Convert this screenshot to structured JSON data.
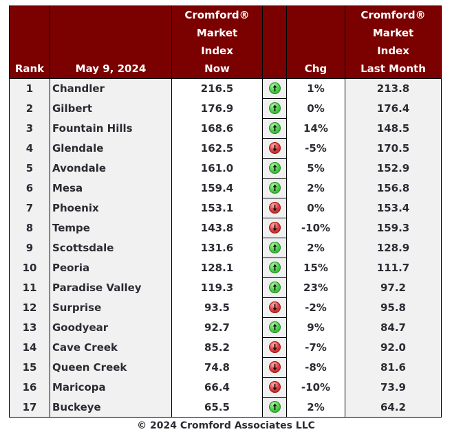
{
  "header": {
    "rank_label": "Rank",
    "date_label": "May 9, 2024",
    "now_label": [
      "Cromford®",
      "Market",
      "Index",
      "Now"
    ],
    "icon_label": "",
    "chg_label": "Chg",
    "last_label": [
      "Cromford®",
      "Market",
      "Index",
      "Last Month"
    ]
  },
  "colors": {
    "header_bg": "#7b0000",
    "header_text": "#ffffff",
    "up_icon": "#3cc63c",
    "down_icon": "#d83030",
    "shaded_cell": "#f1f1f1"
  },
  "rows": [
    {
      "rank": "1",
      "city": "Chandler",
      "now": "216.5",
      "direction": "up-arrow-icon",
      "chg": "1%",
      "last": "213.8"
    },
    {
      "rank": "2",
      "city": "Gilbert",
      "now": "176.9",
      "direction": "up-arrow-icon",
      "chg": "0%",
      "last": "176.4"
    },
    {
      "rank": "3",
      "city": "Fountain Hills",
      "now": "168.6",
      "direction": "up-arrow-icon",
      "chg": "14%",
      "last": "148.5"
    },
    {
      "rank": "4",
      "city": "Glendale",
      "now": "162.5",
      "direction": "down-arrow-icon",
      "chg": "-5%",
      "last": "170.5"
    },
    {
      "rank": "5",
      "city": "Avondale",
      "now": "161.0",
      "direction": "up-arrow-icon",
      "chg": "5%",
      "last": "152.9"
    },
    {
      "rank": "6",
      "city": "Mesa",
      "now": "159.4",
      "direction": "up-arrow-icon",
      "chg": "2%",
      "last": "156.8"
    },
    {
      "rank": "7",
      "city": "Phoenix",
      "now": "153.1",
      "direction": "down-arrow-icon",
      "chg": "0%",
      "last": "153.4"
    },
    {
      "rank": "8",
      "city": "Tempe",
      "now": "143.8",
      "direction": "down-arrow-icon",
      "chg": "-10%",
      "last": "159.3"
    },
    {
      "rank": "9",
      "city": "Scottsdale",
      "now": "131.6",
      "direction": "up-arrow-icon",
      "chg": "2%",
      "last": "128.9"
    },
    {
      "rank": "10",
      "city": "Peoria",
      "now": "128.1",
      "direction": "up-arrow-icon",
      "chg": "15%",
      "last": "111.7"
    },
    {
      "rank": "11",
      "city": "Paradise Valley",
      "now": "119.3",
      "direction": "up-arrow-icon",
      "chg": "23%",
      "last": "97.2"
    },
    {
      "rank": "12",
      "city": "Surprise",
      "now": "93.5",
      "direction": "down-arrow-icon",
      "chg": "-2%",
      "last": "95.8"
    },
    {
      "rank": "13",
      "city": "Goodyear",
      "now": "92.7",
      "direction": "up-arrow-icon",
      "chg": "9%",
      "last": "84.7"
    },
    {
      "rank": "14",
      "city": "Cave Creek",
      "now": "85.2",
      "direction": "down-arrow-icon",
      "chg": "-7%",
      "last": "92.0"
    },
    {
      "rank": "15",
      "city": "Queen Creek",
      "now": "74.8",
      "direction": "down-arrow-icon",
      "chg": "-8%",
      "last": "81.6"
    },
    {
      "rank": "16",
      "city": "Maricopa",
      "now": "66.4",
      "direction": "down-arrow-icon",
      "chg": "-10%",
      "last": "73.9"
    },
    {
      "rank": "17",
      "city": "Buckeye",
      "now": "65.5",
      "direction": "up-arrow-icon",
      "chg": "2%",
      "last": "64.2"
    }
  ],
  "footer": {
    "copyright": "© 2024 Cromford Associates LLC"
  }
}
